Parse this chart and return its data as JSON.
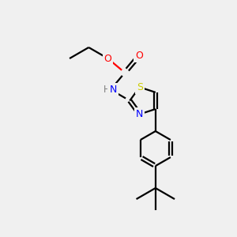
{
  "background_color": "#f0f0f0",
  "bond_color": "#000000",
  "atom_colors": {
    "O": "#ff0000",
    "N": "#0000ff",
    "S": "#cccc00",
    "H": "#7f7f7f",
    "C": "#000000"
  },
  "figsize": [
    3.0,
    3.0
  ],
  "dpi": 100,
  "lw": 1.6
}
